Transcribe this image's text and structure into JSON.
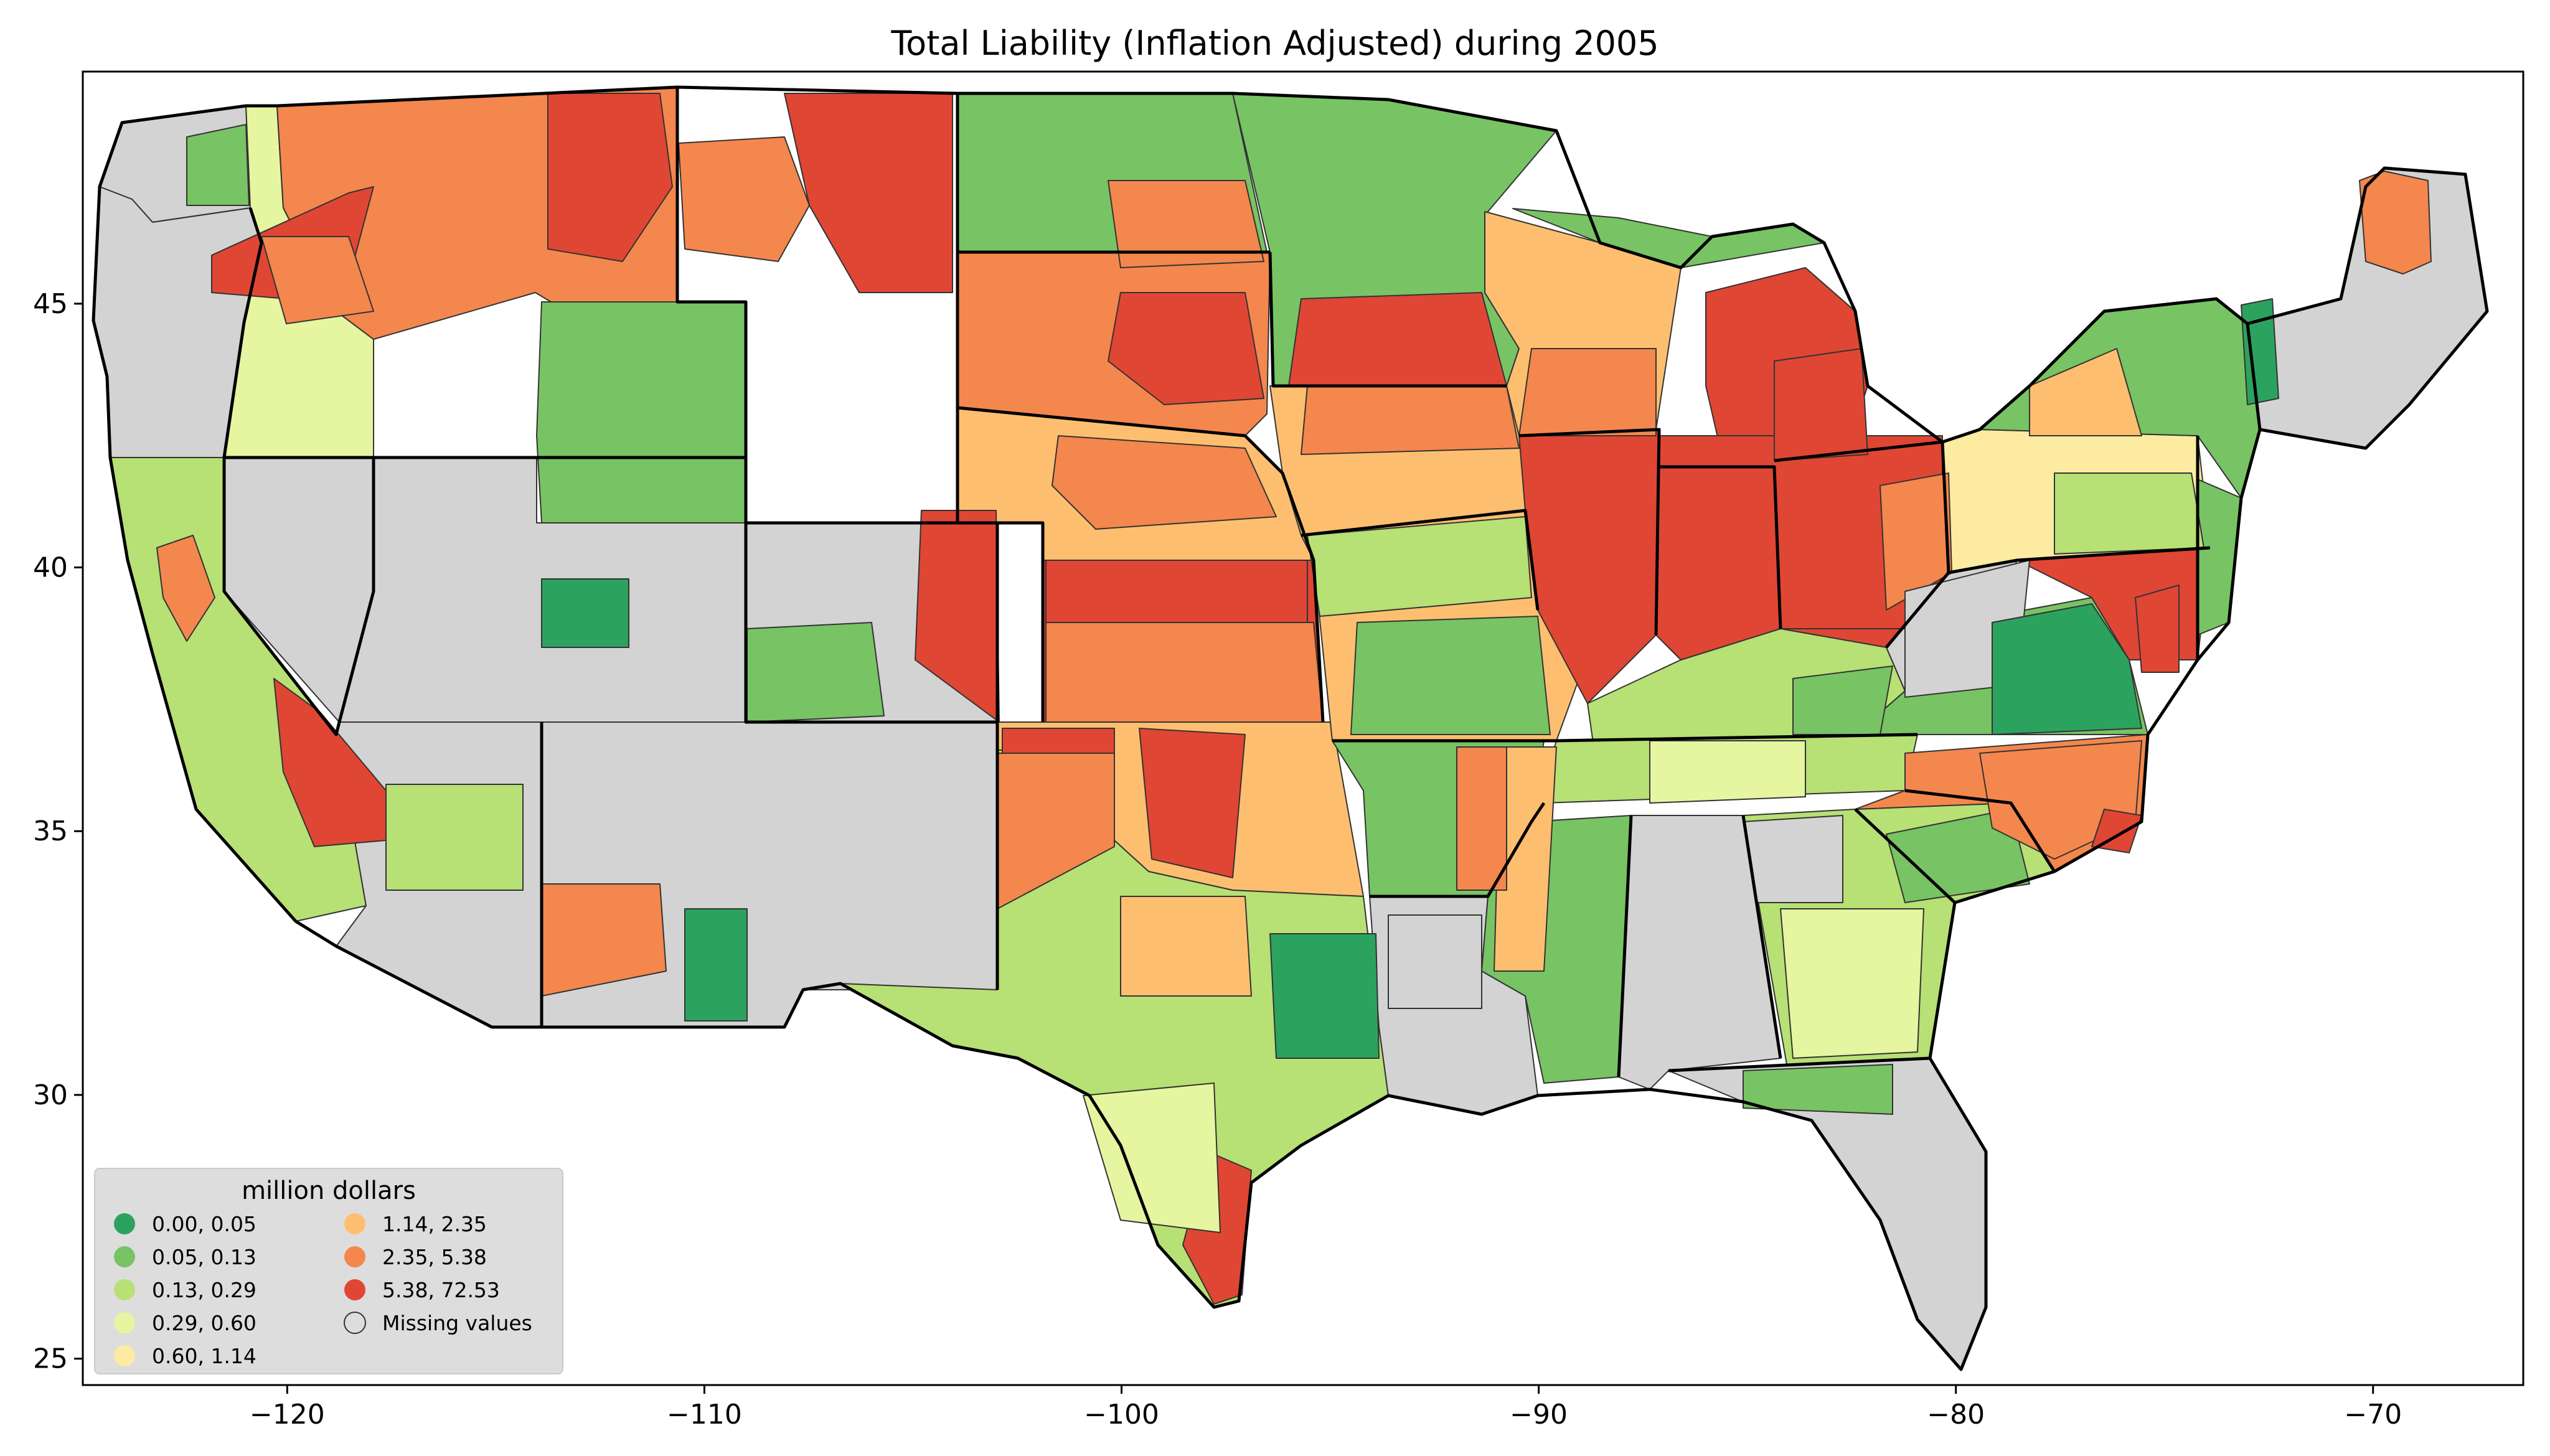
{
  "title": "Total Liability  (Inflation Adjusted) during 2005",
  "axes": {
    "x_ticks": [
      {
        "value": -120,
        "label": "−120"
      },
      {
        "value": -110,
        "label": "−110"
      },
      {
        "value": -100,
        "label": "−100"
      },
      {
        "value": -90,
        "label": "−90"
      },
      {
        "value": -80,
        "label": "−80"
      },
      {
        "value": -70,
        "label": "−70"
      }
    ],
    "y_ticks": [
      {
        "value": 45,
        "label": "45"
      },
      {
        "value": 40,
        "label": "40"
      },
      {
        "value": 35,
        "label": "35"
      },
      {
        "value": 30,
        "label": "30"
      },
      {
        "value": 25,
        "label": "25"
      }
    ],
    "xlim": [
      -124.9,
      -66.4
    ],
    "ylim": [
      24.5,
      49.4
    ]
  },
  "legend": {
    "title": "million dollars",
    "position": "lower-left",
    "items": [
      {
        "label": "0.00,  0.05",
        "color": "#2ca25f"
      },
      {
        "label": "0.05,  0.13",
        "color": "#78c364"
      },
      {
        "label": "0.13,  0.29",
        "color": "#b7e075"
      },
      {
        "label": "0.29,  0.60",
        "color": "#e6f5a0"
      },
      {
        "label": "0.60,  1.14",
        "color": "#feeba2"
      },
      {
        "label": "1.14,  2.35",
        "color": "#fdbf6f"
      },
      {
        "label": "2.35,  5.38",
        "color": "#f4874d"
      },
      {
        "label": "5.38, 72.53",
        "color": "#e04634"
      },
      {
        "label": "Missing values",
        "color": "#d3d3d3"
      }
    ]
  },
  "colors": {
    "missing": "#d3d3d3",
    "state_border": "#000000",
    "county_border": "#333333",
    "legend_background": "#dcdcdc"
  }
}
